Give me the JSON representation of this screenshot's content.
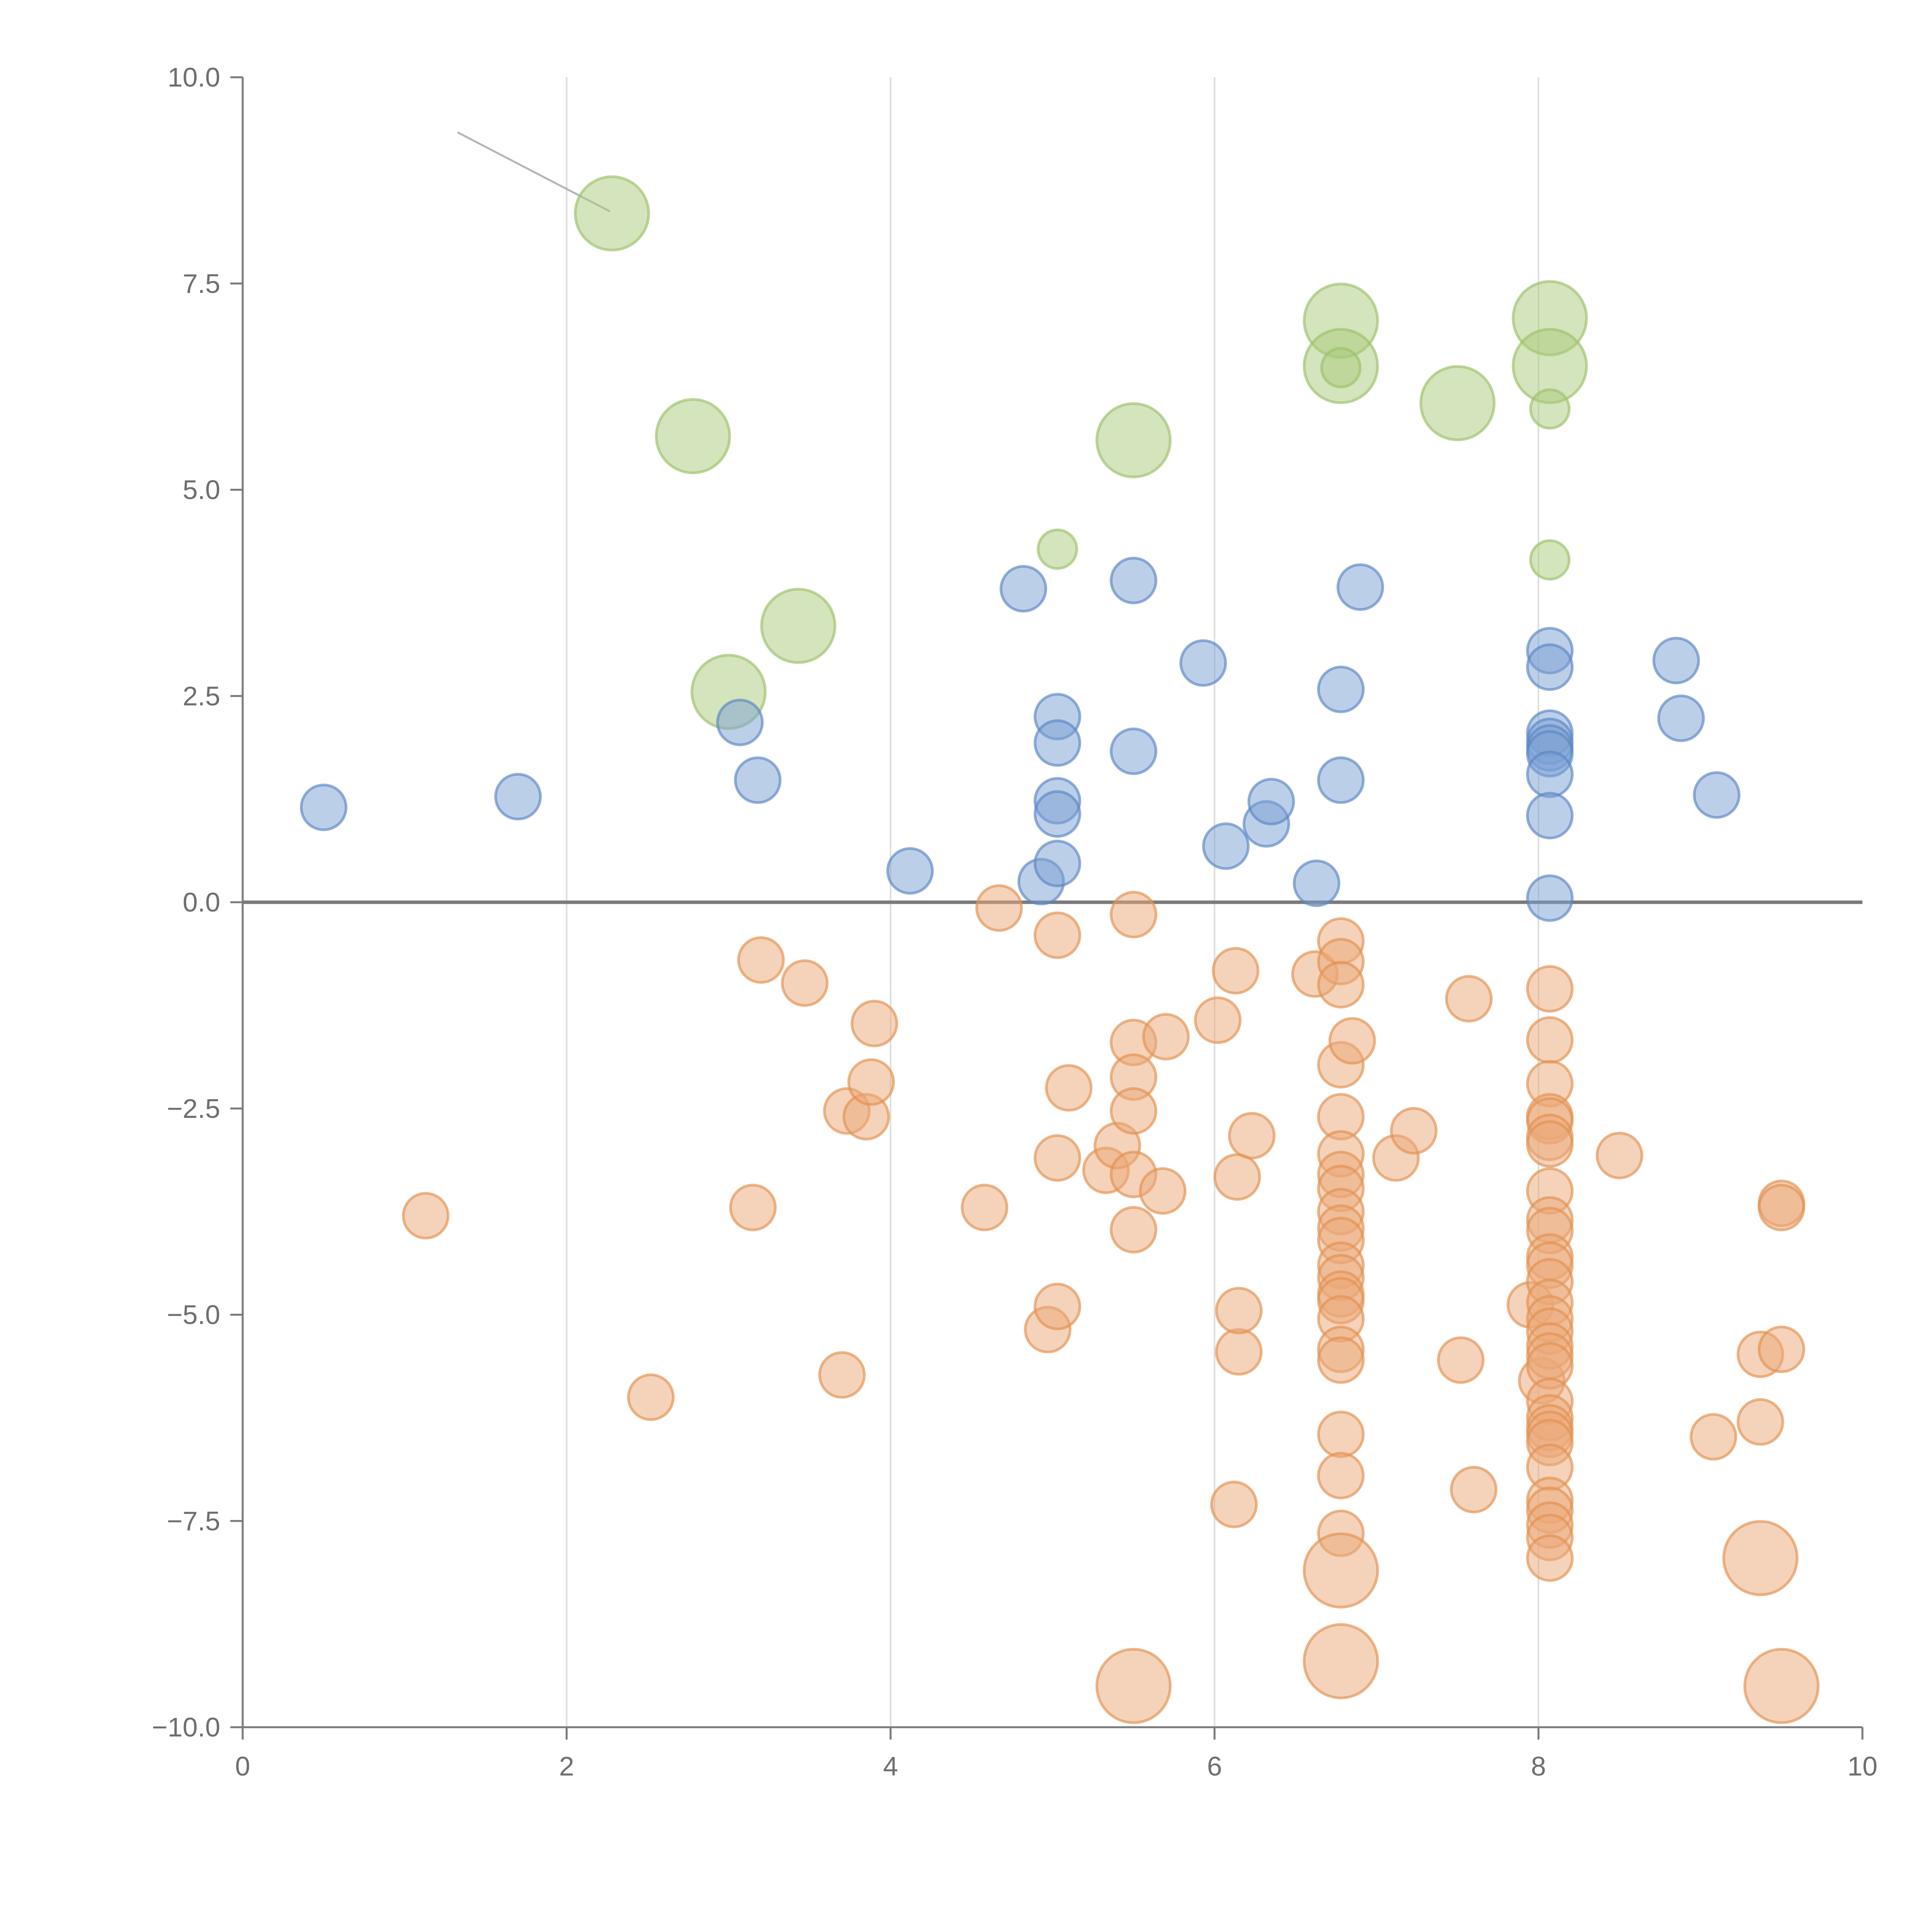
{
  "chart_data": {
    "type": "scatter",
    "title": "",
    "xlabel": "",
    "ylabel": "",
    "xlim": [
      0,
      10
    ],
    "ylim": [
      -10,
      10
    ],
    "x_ticks": [
      0,
      2,
      4,
      6,
      8,
      10
    ],
    "x_tick_labels": [
      "0",
      "2",
      "4",
      "6",
      "8",
      "10"
    ],
    "y_ticks": [
      10,
      7.5,
      5,
      2.5,
      0,
      -2.5,
      -5,
      -7.5,
      -10
    ],
    "y_tick_labels": [
      "10.0",
      "7.5",
      "5.0",
      "2.5",
      "0.0",
      "−2.5",
      "−5.0",
      "−7.5",
      "−10.0"
    ],
    "grid": "vertical lines at x ticks",
    "reference_line": {
      "y": 0
    },
    "series": [
      {
        "name": "green",
        "color": "#a9c97a",
        "stroke": "#9cc06a",
        "points": [
          {
            "x": 2.28,
            "y": 8.35,
            "size": "large",
            "leader": "long"
          },
          {
            "x": 2.78,
            "y": 5.65,
            "size": "large",
            "leader": "short"
          },
          {
            "x": 3.0,
            "y": 2.55,
            "size": "large",
            "leader": "short"
          },
          {
            "x": 3.43,
            "y": 3.35,
            "size": "large",
            "leader": "short"
          },
          {
            "x": 5.03,
            "y": 4.28,
            "size": "small"
          },
          {
            "x": 5.5,
            "y": 5.6,
            "size": "large"
          },
          {
            "x": 6.78,
            "y": 7.05,
            "size": "large",
            "leader": "short"
          },
          {
            "x": 6.78,
            "y": 6.5,
            "size": "large"
          },
          {
            "x": 6.78,
            "y": 6.48,
            "size": "small"
          },
          {
            "x": 7.5,
            "y": 6.05,
            "size": "large",
            "leader": "short"
          },
          {
            "x": 8.07,
            "y": 7.08,
            "size": "large",
            "leader": "short"
          },
          {
            "x": 8.07,
            "y": 6.5,
            "size": "large",
            "leader": "short"
          },
          {
            "x": 8.07,
            "y": 5.98,
            "size": "small"
          },
          {
            "x": 8.07,
            "y": 4.15,
            "size": "small"
          }
        ]
      },
      {
        "name": "blue",
        "color": "#7a9fd4",
        "stroke": "#5b85c4",
        "points": [
          {
            "x": 0.5,
            "y": 1.15
          },
          {
            "x": 1.7,
            "y": 1.28
          },
          {
            "x": 3.07,
            "y": 2.18
          },
          {
            "x": 3.18,
            "y": 1.48
          },
          {
            "x": 4.12,
            "y": 0.38
          },
          {
            "x": 4.82,
            "y": 3.8
          },
          {
            "x": 4.93,
            "y": 0.25
          },
          {
            "x": 5.03,
            "y": 2.25
          },
          {
            "x": 5.03,
            "y": 1.93
          },
          {
            "x": 5.03,
            "y": 1.23
          },
          {
            "x": 5.03,
            "y": 1.07
          },
          {
            "x": 5.03,
            "y": 0.47
          },
          {
            "x": 5.5,
            "y": 3.9
          },
          {
            "x": 5.5,
            "y": 1.83
          },
          {
            "x": 5.93,
            "y": 2.9
          },
          {
            "x": 6.07,
            "y": 0.68
          },
          {
            "x": 6.32,
            "y": 0.95
          },
          {
            "x": 6.35,
            "y": 1.22
          },
          {
            "x": 6.63,
            "y": 0.23
          },
          {
            "x": 6.78,
            "y": 2.58
          },
          {
            "x": 6.78,
            "y": 1.48
          },
          {
            "x": 6.9,
            "y": 3.82
          },
          {
            "x": 8.07,
            "y": 3.05
          },
          {
            "x": 8.07,
            "y": 2.85
          },
          {
            "x": 8.07,
            "y": 2.05
          },
          {
            "x": 8.07,
            "y": 1.95
          },
          {
            "x": 8.07,
            "y": 1.87
          },
          {
            "x": 8.07,
            "y": 1.8
          },
          {
            "x": 8.07,
            "y": 1.55
          },
          {
            "x": 8.07,
            "y": 1.05
          },
          {
            "x": 8.07,
            "y": 0.05
          },
          {
            "x": 8.85,
            "y": 2.93
          },
          {
            "x": 8.88,
            "y": 2.23
          },
          {
            "x": 9.1,
            "y": 1.3
          }
        ]
      },
      {
        "name": "orange",
        "color": "#eba877",
        "stroke": "#e2904f",
        "points": [
          {
            "x": 1.13,
            "y": -3.8
          },
          {
            "x": 2.52,
            "y": -6.0
          },
          {
            "x": 3.15,
            "y": -3.7
          },
          {
            "x": 3.2,
            "y": -0.7
          },
          {
            "x": 3.47,
            "y": -0.98
          },
          {
            "x": 3.7,
            "y": -5.73
          },
          {
            "x": 3.73,
            "y": -2.53
          },
          {
            "x": 3.85,
            "y": -2.6
          },
          {
            "x": 3.88,
            "y": -2.18
          },
          {
            "x": 3.9,
            "y": -1.47
          },
          {
            "x": 4.58,
            "y": -3.7
          },
          {
            "x": 4.67,
            "y": -0.07
          },
          {
            "x": 4.97,
            "y": -5.18
          },
          {
            "x": 5.03,
            "y": -4.9
          },
          {
            "x": 5.03,
            "y": -0.4
          },
          {
            "x": 5.03,
            "y": -3.1
          },
          {
            "x": 5.1,
            "y": -2.25
          },
          {
            "x": 5.33,
            "y": -3.25
          },
          {
            "x": 5.4,
            "y": -2.95
          },
          {
            "x": 5.5,
            "y": -0.15
          },
          {
            "x": 5.5,
            "y": -1.7
          },
          {
            "x": 5.5,
            "y": -2.12
          },
          {
            "x": 5.5,
            "y": -2.53
          },
          {
            "x": 5.5,
            "y": -3.3
          },
          {
            "x": 5.5,
            "y": -3.97
          },
          {
            "x": 5.68,
            "y": -3.5
          },
          {
            "x": 5.7,
            "y": -1.63
          },
          {
            "x": 6.02,
            "y": -1.43
          },
          {
            "x": 6.12,
            "y": -7.3
          },
          {
            "x": 6.13,
            "y": -0.83
          },
          {
            "x": 6.14,
            "y": -3.33
          },
          {
            "x": 6.15,
            "y": -5.45
          },
          {
            "x": 6.15,
            "y": -4.95
          },
          {
            "x": 6.23,
            "y": -2.83
          },
          {
            "x": 6.62,
            "y": -0.87
          },
          {
            "x": 6.78,
            "y": -0.47
          },
          {
            "x": 6.78,
            "y": -0.72
          },
          {
            "x": 6.78,
            "y": -1.0
          },
          {
            "x": 6.78,
            "y": -1.97
          },
          {
            "x": 6.78,
            "y": -2.6
          },
          {
            "x": 6.78,
            "y": -3.05
          },
          {
            "x": 6.78,
            "y": -3.3
          },
          {
            "x": 6.78,
            "y": -3.47
          },
          {
            "x": 6.78,
            "y": -3.75
          },
          {
            "x": 6.78,
            "y": -3.95
          },
          {
            "x": 6.78,
            "y": -4.1
          },
          {
            "x": 6.78,
            "y": -4.4
          },
          {
            "x": 6.78,
            "y": -4.55
          },
          {
            "x": 6.78,
            "y": -4.75
          },
          {
            "x": 6.78,
            "y": -4.83
          },
          {
            "x": 6.78,
            "y": -5.05
          },
          {
            "x": 6.78,
            "y": -5.42
          },
          {
            "x": 6.78,
            "y": -5.55
          },
          {
            "x": 6.78,
            "y": -6.45
          },
          {
            "x": 6.78,
            "y": -6.95
          },
          {
            "x": 6.78,
            "y": -7.65
          },
          {
            "x": 6.85,
            "y": -1.68
          },
          {
            "x": 7.12,
            "y": -3.1
          },
          {
            "x": 7.23,
            "y": -2.77
          },
          {
            "x": 7.52,
            "y": -5.55
          },
          {
            "x": 7.57,
            "y": -1.17
          },
          {
            "x": 7.6,
            "y": -7.12
          },
          {
            "x": 7.95,
            "y": -4.88
          },
          {
            "x": 8.02,
            "y": -5.8
          },
          {
            "x": 8.07,
            "y": -1.05
          },
          {
            "x": 8.07,
            "y": -1.67
          },
          {
            "x": 8.07,
            "y": -2.2
          },
          {
            "x": 8.07,
            "y": -2.6
          },
          {
            "x": 8.07,
            "y": -2.65
          },
          {
            "x": 8.07,
            "y": -2.85
          },
          {
            "x": 8.07,
            "y": -2.93
          },
          {
            "x": 8.07,
            "y": -3.5
          },
          {
            "x": 8.07,
            "y": -3.85
          },
          {
            "x": 8.07,
            "y": -3.98
          },
          {
            "x": 8.07,
            "y": -4.3
          },
          {
            "x": 8.07,
            "y": -4.4
          },
          {
            "x": 8.07,
            "y": -4.6
          },
          {
            "x": 8.07,
            "y": -4.85
          },
          {
            "x": 8.07,
            "y": -5.05
          },
          {
            "x": 8.07,
            "y": -5.2
          },
          {
            "x": 8.07,
            "y": -5.38
          },
          {
            "x": 8.07,
            "y": -5.5
          },
          {
            "x": 8.07,
            "y": -5.62
          },
          {
            "x": 8.07,
            "y": -6.05
          },
          {
            "x": 8.07,
            "y": -6.25
          },
          {
            "x": 8.07,
            "y": -6.37
          },
          {
            "x": 8.07,
            "y": -6.45
          },
          {
            "x": 8.07,
            "y": -6.55
          },
          {
            "x": 8.07,
            "y": -6.85
          },
          {
            "x": 8.07,
            "y": -7.25
          },
          {
            "x": 8.07,
            "y": -7.37
          },
          {
            "x": 8.07,
            "y": -7.55
          },
          {
            "x": 8.07,
            "y": -7.7
          },
          {
            "x": 8.07,
            "y": -7.95
          },
          {
            "x": 8.5,
            "y": -3.07
          },
          {
            "x": 9.08,
            "y": -6.48
          },
          {
            "x": 9.37,
            "y": -5.48
          },
          {
            "x": 9.37,
            "y": -6.3
          },
          {
            "x": 9.5,
            "y": -3.65
          },
          {
            "x": 9.5,
            "y": -3.7
          },
          {
            "x": 9.5,
            "y": -5.42
          },
          {
            "x": 5.5,
            "y": -9.5,
            "size": "large",
            "leader": "short"
          },
          {
            "x": 6.78,
            "y": -8.1,
            "size": "large",
            "leader": "short"
          },
          {
            "x": 6.78,
            "y": -9.2,
            "size": "large"
          },
          {
            "x": 9.37,
            "y": -7.95,
            "size": "large",
            "leader": "short"
          },
          {
            "x": 9.5,
            "y": -9.5,
            "size": "large",
            "leader": "short"
          }
        ]
      }
    ]
  }
}
